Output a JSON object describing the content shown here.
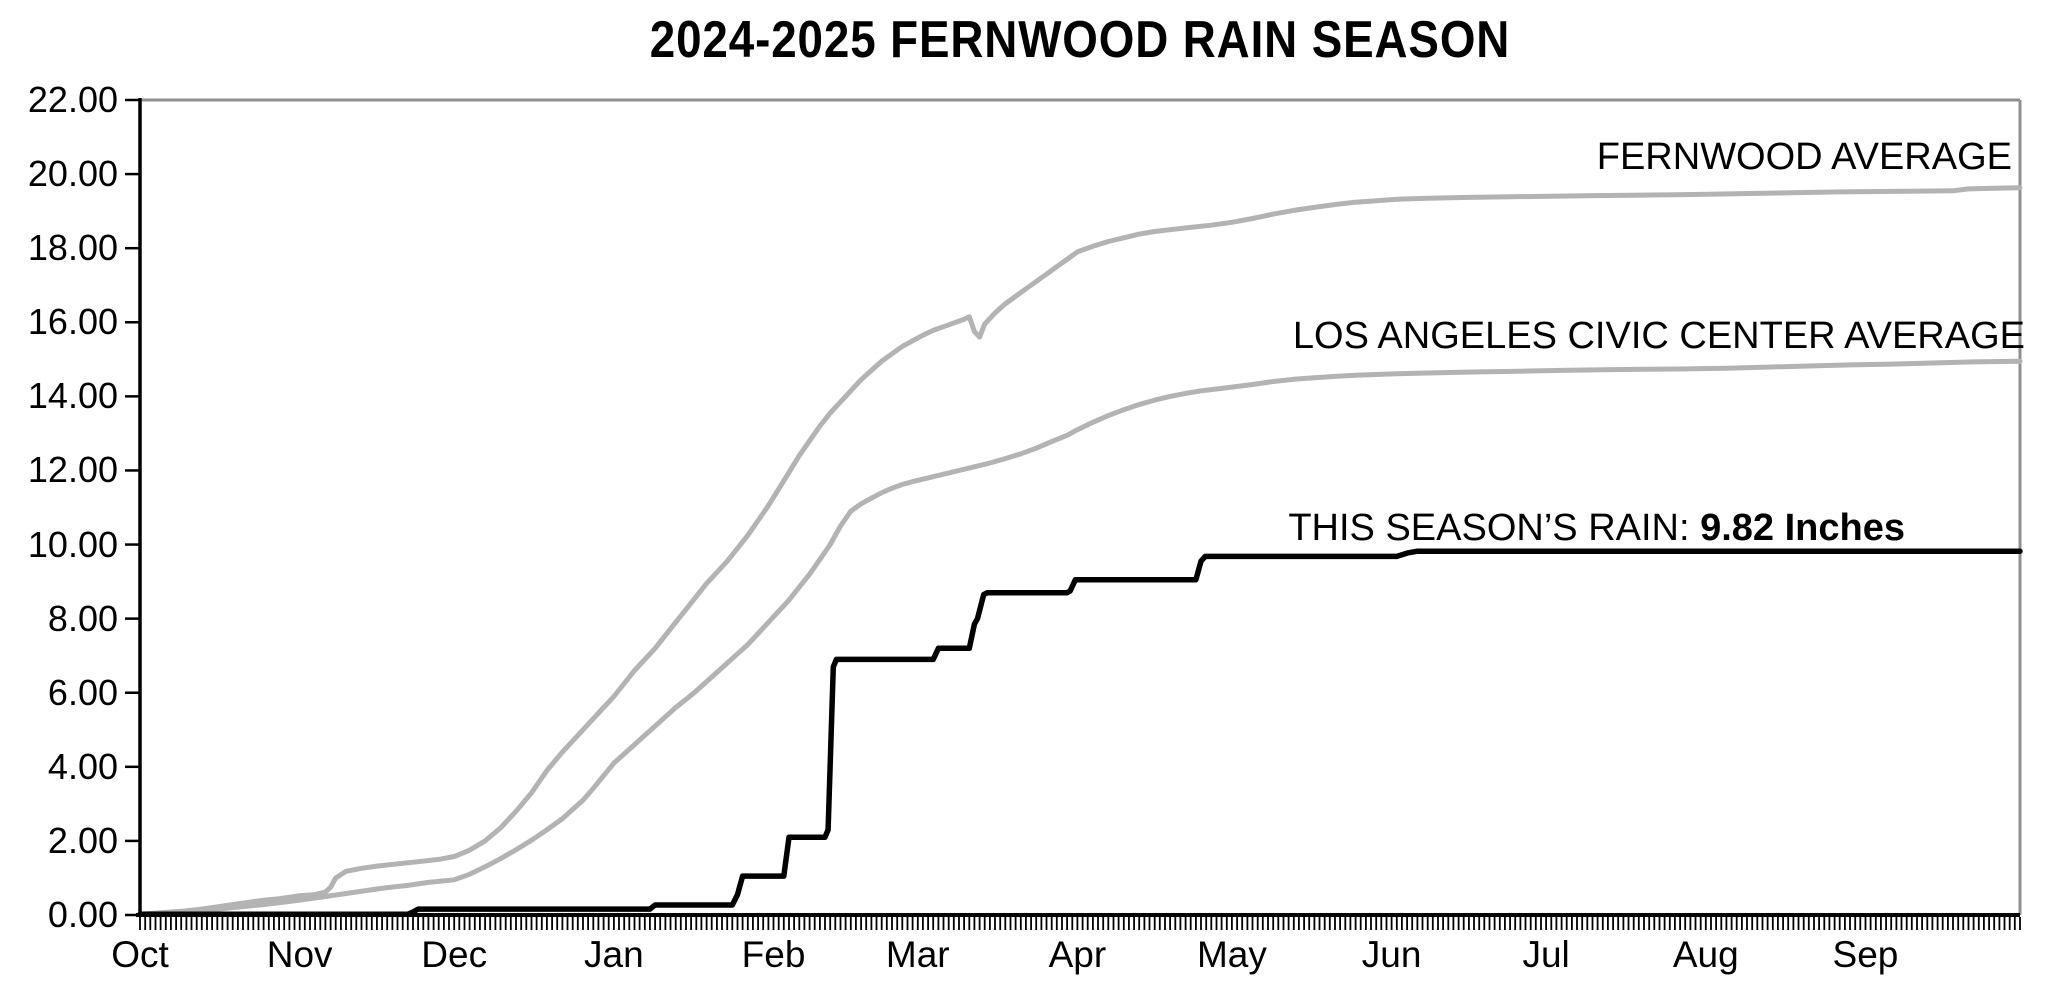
{
  "title": "2024-2025 FERNWOOD RAIN SEASON",
  "labels": {
    "fernwood_average": "FERNWOOD AVERAGE",
    "la_civic_center_average": "LOS ANGELES CIVIC CENTER AVERAGE",
    "season_prefix": "THIS SEASON’S RAIN: ",
    "season_value": "9.82 Inches"
  },
  "colors": {
    "average_line": "#b3b3b3",
    "season_line": "#000000",
    "plot_border": "#8f8f8f",
    "axis": "#000000",
    "text": "#000000",
    "background": "#ffffff"
  },
  "axes": {
    "y": {
      "min": 0,
      "max": 22,
      "step": 2,
      "tick_labels": [
        "0.00",
        "2.00",
        "4.00",
        "6.00",
        "8.00",
        "10.00",
        "12.00",
        "14.00",
        "16.00",
        "18.00",
        "20.00",
        "22.00"
      ]
    },
    "x": {
      "months": [
        "Oct",
        "Nov",
        "Dec",
        "Jan",
        "Feb",
        "Mar",
        "Apr",
        "May",
        "Jun",
        "Jul",
        "Aug",
        "Sep"
      ],
      "month_start_days": [
        0,
        31,
        61,
        92,
        123,
        151,
        182,
        212,
        243,
        273,
        304,
        335
      ],
      "total_days": 365,
      "minor_tick_every_days": 1
    }
  },
  "chart_data": {
    "type": "line",
    "title": "2024-2025 FERNWOOD RAIN SEASON",
    "xlabel": "",
    "ylabel": "",
    "x_unit": "days since Oct 1",
    "ylim": [
      0,
      22
    ],
    "grid": false,
    "legend_position": "inline-right",
    "total_days": 365,
    "series": [
      {
        "name": "FERNWOOD AVERAGE",
        "slug": "fernwood-average",
        "color": "#b3b3b3",
        "width": 5,
        "final_value": 19.63,
        "points": [
          [
            0,
            0.02
          ],
          [
            4,
            0.06
          ],
          [
            8,
            0.1
          ],
          [
            12,
            0.16
          ],
          [
            16,
            0.24
          ],
          [
            20,
            0.32
          ],
          [
            24,
            0.4
          ],
          [
            27,
            0.44
          ],
          [
            31,
            0.52
          ],
          [
            34,
            0.55
          ],
          [
            36,
            0.62
          ],
          [
            37,
            0.75
          ],
          [
            38,
            1.0
          ],
          [
            40,
            1.18
          ],
          [
            43,
            1.26
          ],
          [
            46,
            1.32
          ],
          [
            50,
            1.38
          ],
          [
            54,
            1.44
          ],
          [
            58,
            1.5
          ],
          [
            61,
            1.58
          ],
          [
            64,
            1.75
          ],
          [
            67,
            2.0
          ],
          [
            70,
            2.35
          ],
          [
            73,
            2.8
          ],
          [
            76,
            3.3
          ],
          [
            79,
            3.9
          ],
          [
            82,
            4.4
          ],
          [
            84,
            4.7
          ],
          [
            86,
            5.0
          ],
          [
            88,
            5.3
          ],
          [
            90,
            5.6
          ],
          [
            92,
            5.9
          ],
          [
            94,
            6.25
          ],
          [
            96,
            6.6
          ],
          [
            98,
            6.9
          ],
          [
            100,
            7.2
          ],
          [
            102,
            7.55
          ],
          [
            104,
            7.9
          ],
          [
            106,
            8.25
          ],
          [
            108,
            8.6
          ],
          [
            110,
            8.95
          ],
          [
            112,
            9.25
          ],
          [
            114,
            9.55
          ],
          [
            116,
            9.9
          ],
          [
            118,
            10.25
          ],
          [
            120,
            10.65
          ],
          [
            122,
            11.05
          ],
          [
            124,
            11.5
          ],
          [
            126,
            11.95
          ],
          [
            128,
            12.4
          ],
          [
            130,
            12.8
          ],
          [
            132,
            13.2
          ],
          [
            134,
            13.55
          ],
          [
            136,
            13.85
          ],
          [
            138,
            14.15
          ],
          [
            140,
            14.45
          ],
          [
            142,
            14.7
          ],
          [
            144,
            14.95
          ],
          [
            146,
            15.15
          ],
          [
            148,
            15.35
          ],
          [
            150,
            15.5
          ],
          [
            152,
            15.65
          ],
          [
            154,
            15.78
          ],
          [
            156,
            15.88
          ],
          [
            158,
            15.98
          ],
          [
            160,
            16.08
          ],
          [
            161,
            16.15
          ],
          [
            162,
            15.75
          ],
          [
            163,
            15.6
          ],
          [
            164,
            15.95
          ],
          [
            166,
            16.25
          ],
          [
            168,
            16.5
          ],
          [
            170,
            16.7
          ],
          [
            172,
            16.9
          ],
          [
            174,
            17.1
          ],
          [
            176,
            17.3
          ],
          [
            178,
            17.5
          ],
          [
            180,
            17.7
          ],
          [
            182,
            17.9
          ],
          [
            185,
            18.05
          ],
          [
            188,
            18.18
          ],
          [
            191,
            18.28
          ],
          [
            194,
            18.38
          ],
          [
            197,
            18.45
          ],
          [
            200,
            18.5
          ],
          [
            204,
            18.56
          ],
          [
            208,
            18.62
          ],
          [
            212,
            18.7
          ],
          [
            216,
            18.8
          ],
          [
            220,
            18.92
          ],
          [
            224,
            19.02
          ],
          [
            228,
            19.1
          ],
          [
            232,
            19.18
          ],
          [
            236,
            19.24
          ],
          [
            240,
            19.28
          ],
          [
            244,
            19.32
          ],
          [
            250,
            19.35
          ],
          [
            258,
            19.37
          ],
          [
            266,
            19.39
          ],
          [
            274,
            19.4
          ],
          [
            282,
            19.42
          ],
          [
            290,
            19.43
          ],
          [
            298,
            19.44
          ],
          [
            306,
            19.46
          ],
          [
            314,
            19.48
          ],
          [
            322,
            19.5
          ],
          [
            330,
            19.52
          ],
          [
            338,
            19.53
          ],
          [
            346,
            19.54
          ],
          [
            352,
            19.55
          ],
          [
            355,
            19.6
          ],
          [
            360,
            19.62
          ],
          [
            365,
            19.63
          ]
        ]
      },
      {
        "name": "LOS ANGELES CIVIC CENTER AVERAGE",
        "slug": "la-civic-center-average",
        "color": "#b3b3b3",
        "width": 5,
        "final_value": 14.95,
        "points": [
          [
            0,
            0.02
          ],
          [
            6,
            0.06
          ],
          [
            12,
            0.12
          ],
          [
            18,
            0.2
          ],
          [
            24,
            0.28
          ],
          [
            31,
            0.4
          ],
          [
            36,
            0.5
          ],
          [
            40,
            0.58
          ],
          [
            44,
            0.66
          ],
          [
            48,
            0.74
          ],
          [
            52,
            0.8
          ],
          [
            56,
            0.88
          ],
          [
            61,
            0.95
          ],
          [
            64,
            1.1
          ],
          [
            67,
            1.3
          ],
          [
            70,
            1.52
          ],
          [
            73,
            1.76
          ],
          [
            76,
            2.02
          ],
          [
            79,
            2.3
          ],
          [
            82,
            2.6
          ],
          [
            84,
            2.85
          ],
          [
            86,
            3.1
          ],
          [
            88,
            3.42
          ],
          [
            90,
            3.76
          ],
          [
            92,
            4.1
          ],
          [
            94,
            4.35
          ],
          [
            96,
            4.6
          ],
          [
            98,
            4.85
          ],
          [
            100,
            5.1
          ],
          [
            102,
            5.35
          ],
          [
            104,
            5.6
          ],
          [
            106,
            5.82
          ],
          [
            108,
            6.05
          ],
          [
            110,
            6.3
          ],
          [
            112,
            6.55
          ],
          [
            114,
            6.8
          ],
          [
            116,
            7.05
          ],
          [
            118,
            7.3
          ],
          [
            120,
            7.6
          ],
          [
            122,
            7.9
          ],
          [
            124,
            8.2
          ],
          [
            126,
            8.5
          ],
          [
            128,
            8.85
          ],
          [
            130,
            9.2
          ],
          [
            132,
            9.6
          ],
          [
            134,
            10.0
          ],
          [
            136,
            10.5
          ],
          [
            138,
            10.9
          ],
          [
            140,
            11.1
          ],
          [
            142,
            11.25
          ],
          [
            144,
            11.4
          ],
          [
            146,
            11.52
          ],
          [
            148,
            11.62
          ],
          [
            150,
            11.7
          ],
          [
            153,
            11.8
          ],
          [
            156,
            11.9
          ],
          [
            159,
            12.0
          ],
          [
            162,
            12.1
          ],
          [
            165,
            12.2
          ],
          [
            168,
            12.32
          ],
          [
            171,
            12.45
          ],
          [
            174,
            12.6
          ],
          [
            177,
            12.78
          ],
          [
            180,
            12.95
          ],
          [
            182,
            13.1
          ],
          [
            185,
            13.3
          ],
          [
            188,
            13.48
          ],
          [
            191,
            13.64
          ],
          [
            194,
            13.78
          ],
          [
            197,
            13.9
          ],
          [
            200,
            14.0
          ],
          [
            203,
            14.08
          ],
          [
            206,
            14.15
          ],
          [
            209,
            14.2
          ],
          [
            212,
            14.25
          ],
          [
            216,
            14.32
          ],
          [
            220,
            14.4
          ],
          [
            224,
            14.46
          ],
          [
            228,
            14.5
          ],
          [
            232,
            14.54
          ],
          [
            236,
            14.57
          ],
          [
            240,
            14.59
          ],
          [
            244,
            14.61
          ],
          [
            252,
            14.64
          ],
          [
            260,
            14.66
          ],
          [
            268,
            14.68
          ],
          [
            276,
            14.7
          ],
          [
            284,
            14.72
          ],
          [
            292,
            14.73
          ],
          [
            300,
            14.74
          ],
          [
            308,
            14.76
          ],
          [
            316,
            14.79
          ],
          [
            324,
            14.82
          ],
          [
            332,
            14.85
          ],
          [
            340,
            14.87
          ],
          [
            348,
            14.9
          ],
          [
            356,
            14.93
          ],
          [
            365,
            14.95
          ]
        ]
      },
      {
        "name": "THIS SEASON'S RAIN",
        "slug": "season-rain",
        "color": "#000000",
        "width": 5.5,
        "final_value": 9.82,
        "points": [
          [
            0,
            0.02
          ],
          [
            52,
            0.02
          ],
          [
            53,
            0.08
          ],
          [
            54,
            0.16
          ],
          [
            99,
            0.16
          ],
          [
            100,
            0.27
          ],
          [
            115,
            0.27
          ],
          [
            116,
            0.55
          ],
          [
            117,
            1.05
          ],
          [
            125,
            1.05
          ],
          [
            126,
            2.1
          ],
          [
            133,
            2.1
          ],
          [
            133.6,
            2.3
          ],
          [
            134.6,
            6.7
          ],
          [
            135.2,
            6.9
          ],
          [
            154,
            6.9
          ],
          [
            155,
            7.2
          ],
          [
            161,
            7.2
          ],
          [
            162,
            7.85
          ],
          [
            162.6,
            8.0
          ],
          [
            163.8,
            8.65
          ],
          [
            164.5,
            8.7
          ],
          [
            180,
            8.7
          ],
          [
            180.6,
            8.75
          ],
          [
            181.6,
            9.05
          ],
          [
            205,
            9.05
          ],
          [
            206,
            9.55
          ],
          [
            206.8,
            9.68
          ],
          [
            244,
            9.68
          ],
          [
            246,
            9.77
          ],
          [
            248,
            9.82
          ],
          [
            365,
            9.82
          ]
        ]
      }
    ]
  },
  "plot_geometry_note": "y axis 0.00-22.00 step 2.00; x axis daily ticks Oct 1 - Sep 30"
}
